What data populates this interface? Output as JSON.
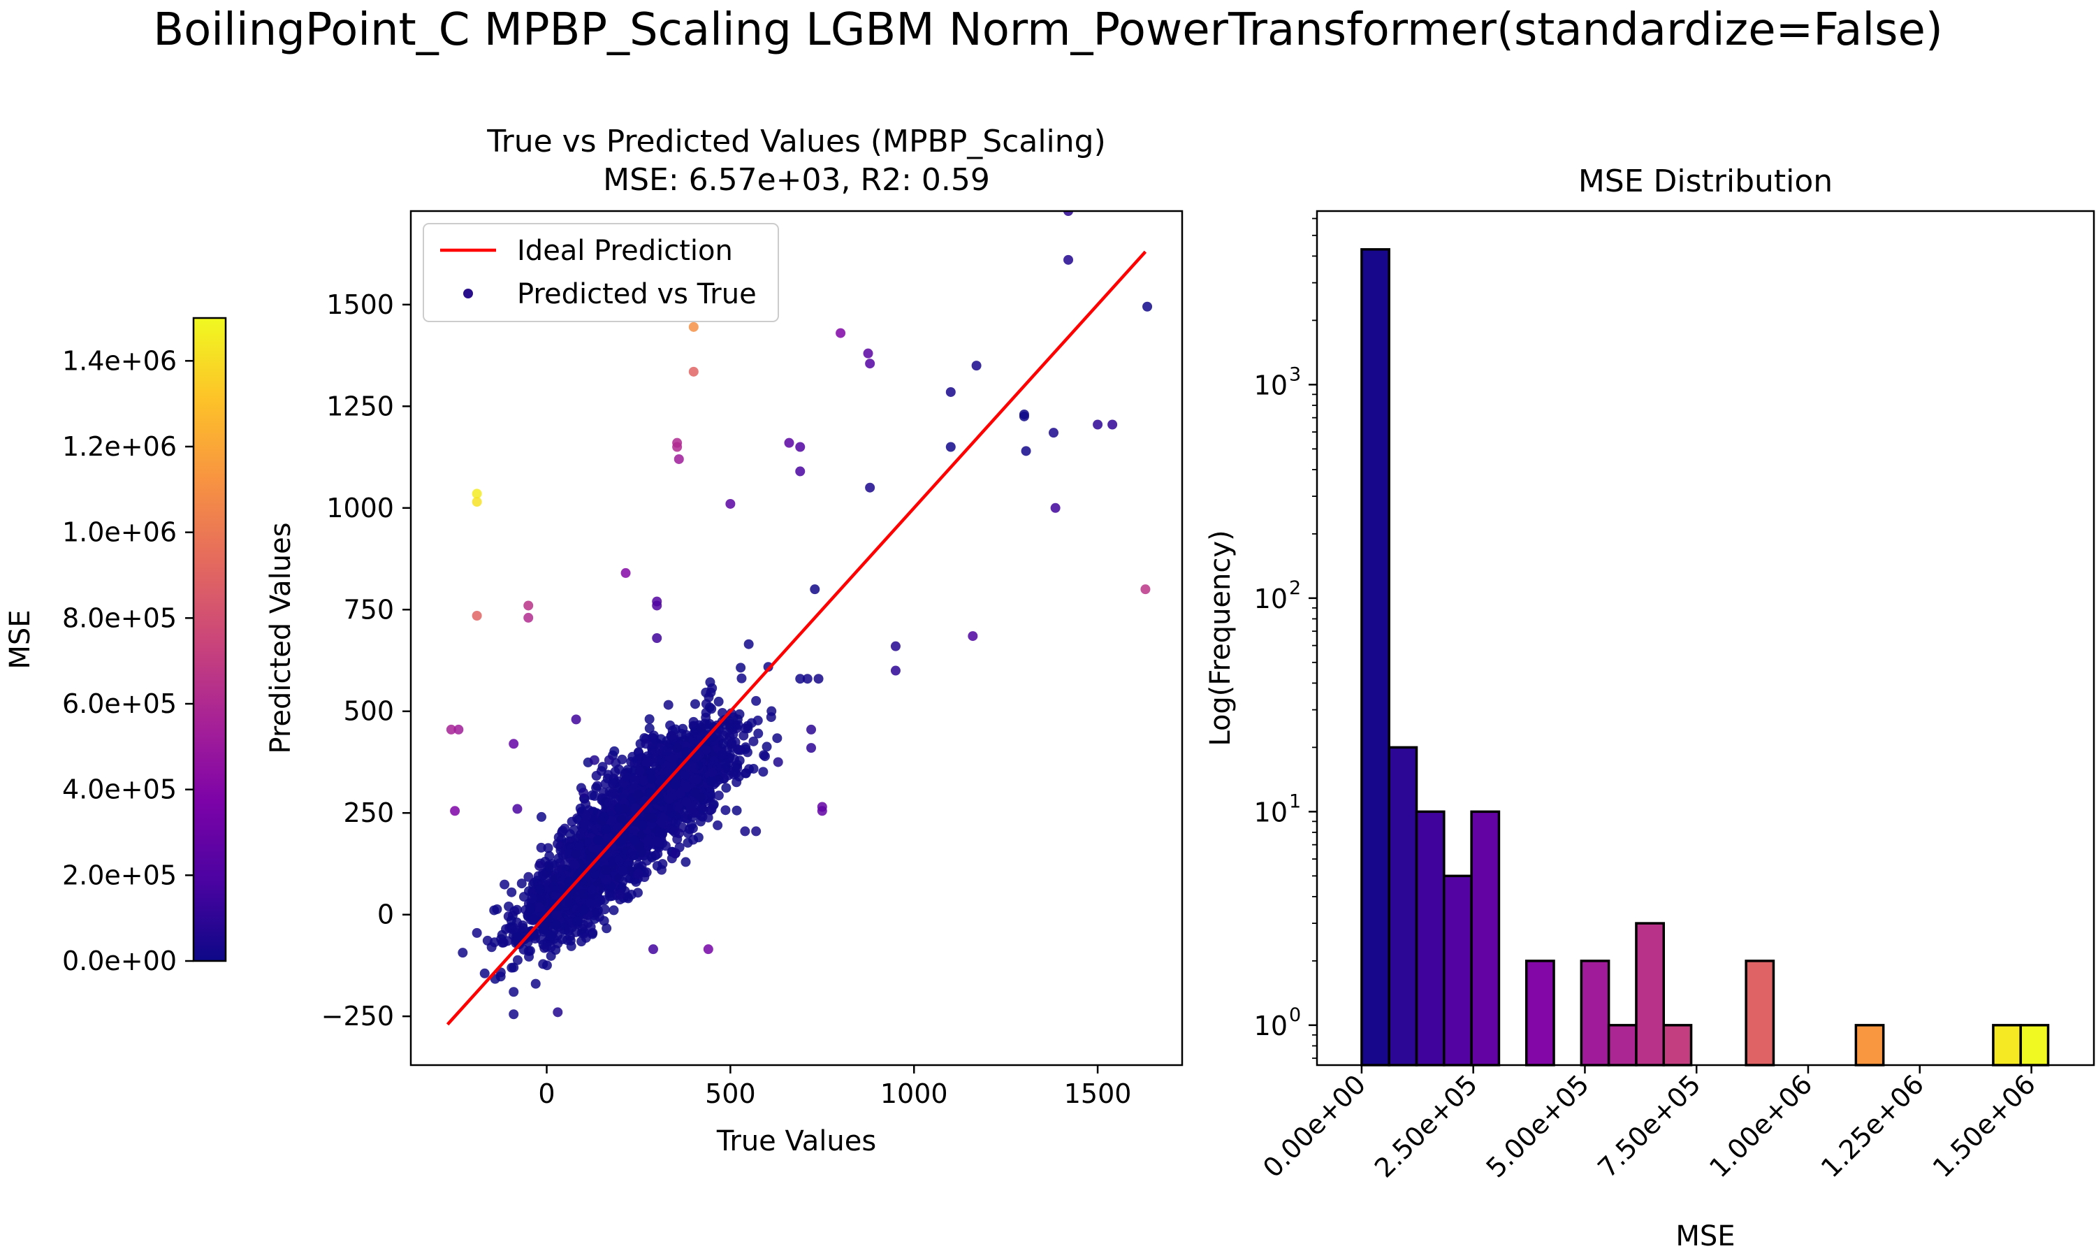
{
  "figure": {
    "title": "BoilingPoint_C MPBP_Scaling LGBM Norm_PowerTransformer(standardize=False)"
  },
  "chart_data": [
    {
      "type": "scatter",
      "title_line1": "True vs Predicted Values (MPBP_Scaling)",
      "title_line2": "MSE: 6.57e+03, R2: 0.59",
      "xlabel": "True Values",
      "ylabel": "Predicted Values",
      "xlim": [
        -370,
        1730
      ],
      "ylim": [
        -370,
        1730
      ],
      "xticks": [
        0,
        500,
        1000,
        1500
      ],
      "xtick_labels": [
        "0",
        "500",
        "1000",
        "1500"
      ],
      "yticks": [
        -250,
        0,
        250,
        500,
        750,
        1000,
        1250,
        1500
      ],
      "ytick_labels": [
        "−250",
        "0",
        "250",
        "500",
        "750",
        "1000",
        "1250",
        "1500"
      ],
      "legend": {
        "position": "upper-left",
        "entries": [
          {
            "label": "Ideal Prediction",
            "kind": "line",
            "color": "#ff0000"
          },
          {
            "label": "Predicted vs True",
            "kind": "marker",
            "color": "#2a0f8c"
          }
        ]
      },
      "ideal_line": {
        "from": [
          -270,
          -270
        ],
        "to": [
          1630,
          1630
        ],
        "color": "#ff0000"
      },
      "points": [
        {
          "x": 1420,
          "y": 1730,
          "mse": 95000
        },
        {
          "x": 1420,
          "y": 1610,
          "mse": 60000
        },
        {
          "x": 1635,
          "y": 1495,
          "mse": 15000
        },
        {
          "x": 800,
          "y": 1430,
          "mse": 390000
        },
        {
          "x": 875,
          "y": 1380,
          "mse": 250000
        },
        {
          "x": 880,
          "y": 1355,
          "mse": 220000
        },
        {
          "x": 400,
          "y": 1445,
          "mse": 1100000
        },
        {
          "x": 400,
          "y": 1335,
          "mse": 900000
        },
        {
          "x": 1170,
          "y": 1350,
          "mse": 30000
        },
        {
          "x": 1100,
          "y": 1285,
          "mse": 30000
        },
        {
          "x": 1300,
          "y": 1230,
          "mse": 6000
        },
        {
          "x": 1300,
          "y": 1225,
          "mse": 6000
        },
        {
          "x": 1380,
          "y": 1185,
          "mse": 40000
        },
        {
          "x": 1500,
          "y": 1205,
          "mse": 100000
        },
        {
          "x": 1540,
          "y": 1205,
          "mse": 110000
        },
        {
          "x": 1100,
          "y": 1150,
          "mse": 15000
        },
        {
          "x": 1305,
          "y": 1140,
          "mse": 20000
        },
        {
          "x": 355,
          "y": 1160,
          "mse": 600000
        },
        {
          "x": 355,
          "y": 1150,
          "mse": 600000
        },
        {
          "x": 660,
          "y": 1160,
          "mse": 250000
        },
        {
          "x": 690,
          "y": 1150,
          "mse": 210000
        },
        {
          "x": 360,
          "y": 1120,
          "mse": 520000
        },
        {
          "x": 690,
          "y": 1090,
          "mse": 180000
        },
        {
          "x": 880,
          "y": 1050,
          "mse": 40000
        },
        {
          "x": 500,
          "y": 1010,
          "mse": 250000
        },
        {
          "x": 1385,
          "y": 1000,
          "mse": 150000
        },
        {
          "x": -190,
          "y": 1035,
          "mse": 1450000
        },
        {
          "x": -190,
          "y": 1015,
          "mse": 1420000
        },
        {
          "x": -190,
          "y": 735,
          "mse": 900000
        },
        {
          "x": 215,
          "y": 840,
          "mse": 400000
        },
        {
          "x": 730,
          "y": 800,
          "mse": 10000
        },
        {
          "x": 1630,
          "y": 800,
          "mse": 660000
        },
        {
          "x": -50,
          "y": 760,
          "mse": 650000
        },
        {
          "x": -50,
          "y": 730,
          "mse": 610000
        },
        {
          "x": 300,
          "y": 770,
          "mse": 220000
        },
        {
          "x": 300,
          "y": 760,
          "mse": 210000
        },
        {
          "x": 1160,
          "y": 685,
          "mse": 200000
        },
        {
          "x": 300,
          "y": 680,
          "mse": 150000
        },
        {
          "x": 550,
          "y": 665,
          "mse": 15000
        },
        {
          "x": 950,
          "y": 660,
          "mse": 70000
        },
        {
          "x": 950,
          "y": 600,
          "mse": 100000
        },
        {
          "x": 690,
          "y": 580,
          "mse": 15000
        },
        {
          "x": 710,
          "y": 580,
          "mse": 20000
        },
        {
          "x": 740,
          "y": 580,
          "mse": 25000
        },
        {
          "x": -260,
          "y": 455,
          "mse": 560000
        },
        {
          "x": -240,
          "y": 455,
          "mse": 530000
        },
        {
          "x": 80,
          "y": 480,
          "mse": 150000
        },
        {
          "x": -90,
          "y": 420,
          "mse": 280000
        },
        {
          "x": 720,
          "y": 455,
          "mse": 90000
        },
        {
          "x": 720,
          "y": 410,
          "mse": 100000
        },
        {
          "x": 630,
          "y": 375,
          "mse": 50000
        },
        {
          "x": -250,
          "y": 255,
          "mse": 380000
        },
        {
          "x": -80,
          "y": 260,
          "mse": 180000
        },
        {
          "x": 750,
          "y": 265,
          "mse": 280000
        },
        {
          "x": 750,
          "y": 255,
          "mse": 270000
        },
        {
          "x": 290,
          "y": -85,
          "mse": 160000
        },
        {
          "x": 440,
          "y": -85,
          "mse": 350000
        },
        {
          "x": 570,
          "y": 205,
          "mse": 25000
        },
        {
          "x": 540,
          "y": 205,
          "mse": 25000
        },
        {
          "x": -190,
          "y": -45,
          "mse": 20000
        },
        {
          "x": -150,
          "y": -80,
          "mse": 10000
        },
        {
          "x": -90,
          "y": -130,
          "mse": 5000
        },
        {
          "x": -90,
          "y": -190,
          "mse": 8000
        },
        {
          "x": -90,
          "y": -245,
          "mse": 20000
        },
        {
          "x": -30,
          "y": -170,
          "mse": 10000
        },
        {
          "x": 30,
          "y": -240,
          "mse": 60000
        },
        {
          "x": 0,
          "y": -80,
          "mse": 5000
        },
        {
          "x": 20,
          "y": -60,
          "mse": 4000
        },
        {
          "x": 60,
          "y": -40,
          "mse": 6000
        },
        {
          "x": 120,
          "y": -30,
          "mse": 15000
        },
        {
          "x": 30,
          "y": 20,
          "mse": 2000
        },
        {
          "x": 60,
          "y": 80,
          "mse": 1500
        },
        {
          "x": 100,
          "y": 50,
          "mse": 2500
        },
        {
          "x": 90,
          "y": 170,
          "mse": 5000
        },
        {
          "x": 120,
          "y": 140,
          "mse": 2000
        },
        {
          "x": 150,
          "y": 230,
          "mse": 3000
        },
        {
          "x": 160,
          "y": 110,
          "mse": 3000
        },
        {
          "x": 180,
          "y": 300,
          "mse": 10000
        },
        {
          "x": 200,
          "y": 180,
          "mse": 1000
        },
        {
          "x": 210,
          "y": 260,
          "mse": 2500
        },
        {
          "x": 230,
          "y": 150,
          "mse": 6000
        },
        {
          "x": 240,
          "y": 330,
          "mse": 8000
        },
        {
          "x": 260,
          "y": 220,
          "mse": 1500
        },
        {
          "x": 270,
          "y": 420,
          "mse": 20000
        },
        {
          "x": 280,
          "y": 300,
          "mse": 500
        },
        {
          "x": 300,
          "y": 180,
          "mse": 15000
        },
        {
          "x": 310,
          "y": 380,
          "mse": 5000
        },
        {
          "x": 330,
          "y": 260,
          "mse": 5000
        },
        {
          "x": 340,
          "y": 440,
          "mse": 10000
        },
        {
          "x": 350,
          "y": 320,
          "mse": 1000
        },
        {
          "x": 360,
          "y": 200,
          "mse": 25000
        },
        {
          "x": 380,
          "y": 400,
          "mse": 500
        },
        {
          "x": 400,
          "y": 250,
          "mse": 22000
        },
        {
          "x": 420,
          "y": 460,
          "mse": 2000
        },
        {
          "x": 450,
          "y": 350,
          "mse": 10000
        },
        {
          "x": 480,
          "y": 420,
          "mse": 4000
        },
        {
          "x": 520,
          "y": 480,
          "mse": 1600
        },
        {
          "x": 130,
          "y": 380,
          "mse": 60000
        },
        {
          "x": 100,
          "y": 300,
          "mse": 40000
        },
        {
          "x": 250,
          "y": 100,
          "mse": 22000
        },
        {
          "x": 350,
          "y": 150,
          "mse": 40000
        },
        {
          "x": -40,
          "y": 40,
          "mse": 6000
        },
        {
          "x": -20,
          "y": 120,
          "mse": 20000
        },
        {
          "x": 200,
          "y": 50,
          "mse": 22000
        },
        {
          "x": 170,
          "y": 380,
          "mse": 40000
        }
      ],
      "cluster_regions": [
        {
          "cx": 230,
          "cy": 230,
          "sx": 120,
          "sy": 110,
          "corr": 0.8,
          "count": 1600,
          "mse_max": 20000
        },
        {
          "cx": 60,
          "cy": 40,
          "sx": 90,
          "sy": 70,
          "corr": 0.7,
          "count": 500,
          "mse_max": 10000
        },
        {
          "cx": 360,
          "cy": 330,
          "sx": 90,
          "sy": 70,
          "corr": 0.5,
          "count": 500,
          "mse_max": 15000
        }
      ]
    },
    {
      "type": "bar",
      "title": "MSE Distribution",
      "xlabel": "MSE",
      "ylabel": "Log(Frequency)",
      "y_scale": "log",
      "xlim": [
        -100000,
        1640000
      ],
      "ylim": [
        0.65,
        6500
      ],
      "xticks": [
        0,
        250000,
        500000,
        750000,
        1000000,
        1250000,
        1500000
      ],
      "xtick_labels": [
        "0.00e+00",
        "2.50e+05",
        "5.00e+05",
        "7.50e+05",
        "1.00e+06",
        "1.25e+06",
        "1.50e+06"
      ],
      "yticks": [
        1,
        10,
        100,
        1000
      ],
      "ytick_labels": [
        [
          "10",
          "0"
        ],
        [
          "10",
          "1"
        ],
        [
          "10",
          "2"
        ],
        [
          "10",
          "3"
        ]
      ],
      "bin_width": 61500,
      "bins": [
        {
          "start": 0,
          "count": 4300
        },
        {
          "start": 61500,
          "count": 20
        },
        {
          "start": 123000,
          "count": 10
        },
        {
          "start": 184500,
          "count": 5
        },
        {
          "start": 246000,
          "count": 10
        },
        {
          "start": 369000,
          "count": 2
        },
        {
          "start": 492000,
          "count": 2
        },
        {
          "start": 553500,
          "count": 1
        },
        {
          "start": 615000,
          "count": 3
        },
        {
          "start": 676500,
          "count": 1
        },
        {
          "start": 861000,
          "count": 2
        },
        {
          "start": 1107000,
          "count": 1
        },
        {
          "start": 1414500,
          "count": 1
        },
        {
          "start": 1476000,
          "count": 1
        }
      ]
    }
  ],
  "colorbar": {
    "label": "MSE",
    "colormap": "plasma",
    "range": [
      0,
      1500000
    ],
    "ticks": [
      0,
      200000,
      400000,
      600000,
      800000,
      1000000,
      1200000,
      1400000
    ],
    "tick_labels": [
      "0.0e+00",
      "2.0e+05",
      "4.0e+05",
      "6.0e+05",
      "8.0e+05",
      "1.0e+06",
      "1.2e+06",
      "1.4e+06"
    ]
  }
}
